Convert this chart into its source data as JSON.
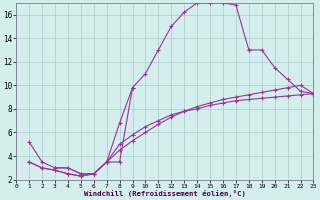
{
  "xlabel": "Windchill (Refroidissement éolien,°C)",
  "bg_color": "#d4eeed",
  "line_color": "#993399",
  "grid_color": "#b0c8c8",
  "xlim": [
    0,
    23
  ],
  "ylim": [
    2,
    17
  ],
  "xticks": [
    0,
    1,
    2,
    3,
    4,
    5,
    6,
    7,
    8,
    9,
    10,
    11,
    12,
    13,
    14,
    15,
    16,
    17,
    18,
    19,
    20,
    21,
    22,
    23
  ],
  "yticks": [
    2,
    4,
    6,
    8,
    10,
    12,
    14,
    16
  ],
  "curve_big_x": [
    1,
    2,
    3,
    4,
    5,
    6,
    7,
    8,
    9,
    10,
    11,
    12,
    13,
    14,
    15,
    16,
    17,
    18
  ],
  "curve_big_y": [
    5.2,
    3.5,
    3.0,
    3.0,
    2.5,
    2.5,
    3.5,
    3.5,
    9.8,
    11.0,
    13.0,
    15.0,
    16.2,
    17.0,
    17.0,
    17.0,
    16.8,
    13.0
  ],
  "curve_ret_x": [
    18,
    19,
    20,
    21,
    22,
    23
  ],
  "curve_ret_y": [
    13.0,
    13.0,
    11.5,
    10.5,
    9.5,
    9.3
  ],
  "curve_small_x": [
    3,
    4,
    5,
    6,
    7,
    8,
    9
  ],
  "curve_small_y": [
    3.0,
    3.0,
    2.5,
    2.5,
    3.5,
    6.8,
    9.8
  ],
  "diag1_x": [
    1,
    2,
    3,
    4,
    5,
    6,
    7,
    8,
    9,
    10,
    11,
    12,
    13,
    14,
    15,
    16,
    17,
    18,
    19,
    20,
    21,
    22,
    23
  ],
  "diag1_y": [
    3.5,
    3.0,
    2.8,
    2.5,
    2.3,
    2.5,
    3.5,
    4.5,
    5.3,
    6.0,
    6.7,
    7.3,
    7.8,
    8.2,
    8.5,
    8.8,
    9.0,
    9.2,
    9.4,
    9.6,
    9.8,
    10.0,
    9.3
  ],
  "diag2_x": [
    1,
    2,
    3,
    4,
    5,
    6,
    7,
    8,
    9,
    10,
    11,
    12,
    13,
    14,
    15,
    16,
    17,
    18,
    19,
    20,
    21,
    22,
    23
  ],
  "diag2_y": [
    3.5,
    3.0,
    2.8,
    2.5,
    2.3,
    2.5,
    3.5,
    5.0,
    5.8,
    6.5,
    7.0,
    7.5,
    7.8,
    8.0,
    8.3,
    8.5,
    8.7,
    8.8,
    8.9,
    9.0,
    9.1,
    9.2,
    9.3
  ]
}
